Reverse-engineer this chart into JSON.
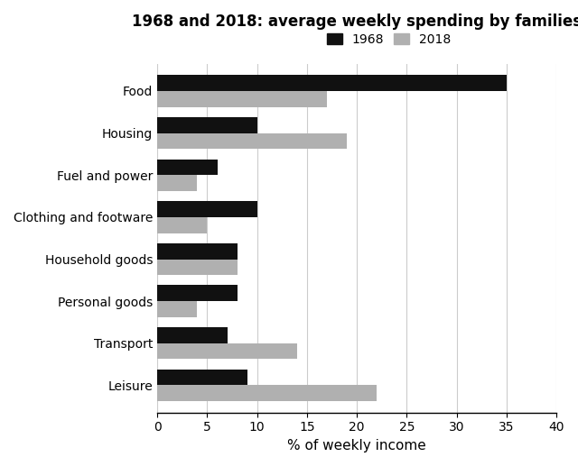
{
  "title": "1968 and 2018: average weekly spending by families",
  "xlabel": "% of weekly income",
  "categories": [
    "Leisure",
    "Transport",
    "Personal goods",
    "Household goods",
    "Clothing and footware",
    "Fuel and power",
    "Housing",
    "Food"
  ],
  "values_1968": [
    9,
    7,
    8,
    8,
    10,
    6,
    10,
    35
  ],
  "values_2018": [
    22,
    14,
    4,
    8,
    5,
    4,
    19,
    17
  ],
  "color_1968": "#111111",
  "color_2018": "#b0b0b0",
  "legend_labels": [
    "1968",
    "2018"
  ],
  "xlim": [
    0,
    40
  ],
  "xticks": [
    0,
    5,
    10,
    15,
    20,
    25,
    30,
    35,
    40
  ],
  "bar_height": 0.38,
  "figsize": [
    6.4,
    5.17
  ],
  "dpi": 100,
  "title_fontsize": 12,
  "axis_label_fontsize": 11,
  "tick_fontsize": 10,
  "legend_fontsize": 10,
  "background_color": "#ffffff"
}
